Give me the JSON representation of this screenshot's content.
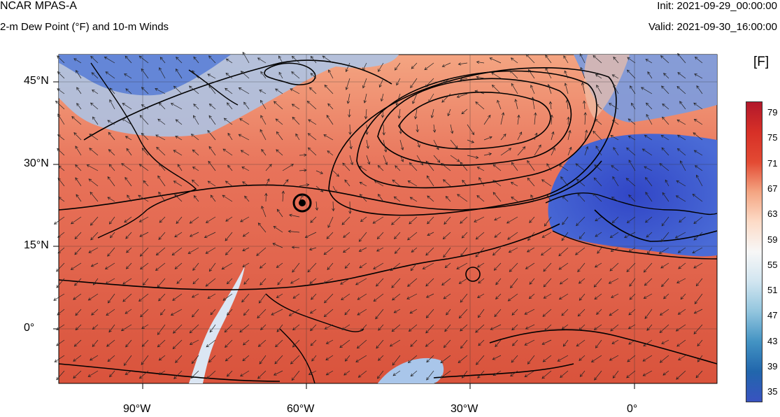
{
  "header": {
    "title": "NCAR MPAS-A",
    "subtitle": "2-m Dew Point (°F) and 10-m Winds",
    "init": "Init: 2021-09-29_00:00:00",
    "valid": "Valid: 2021-09-30_16:00:00"
  },
  "axes": {
    "lat_labels": [
      "45°N",
      "30°N",
      "15°N",
      "0°"
    ],
    "lon_labels": [
      "90°W",
      "60°W",
      "30°W",
      "0°"
    ]
  },
  "colorbar": {
    "unit": "[F]",
    "labels": [
      "79",
      "75",
      "71",
      "67",
      "63",
      "59",
      "55",
      "51",
      "47",
      "43",
      "39",
      "35"
    ],
    "colors": [
      "#b2182b",
      "#d73027",
      "#e34a33",
      "#f4a582",
      "#fddbc7",
      "#f7f7f7",
      "#d1e5f0",
      "#92c5de",
      "#4393c3",
      "#2166ac",
      "#3953c0"
    ]
  },
  "map_colors": {
    "ocean_warm": "#e2604a",
    "land_cool": "#7fa6e0",
    "desert_dry": "#3f5bcf",
    "contour": "#000000"
  }
}
